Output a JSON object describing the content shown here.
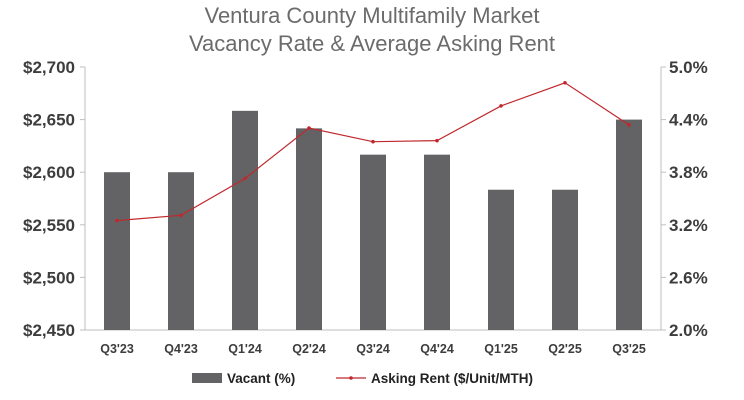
{
  "chart_data": {
    "type": "bar",
    "title": [
      "Ventura County Multifamily Market",
      "Vacancy Rate & Average Asking Rent"
    ],
    "categories": [
      "Q3'23",
      "Q4'23",
      "Q1'24",
      "Q2'24",
      "Q3'24",
      "Q4'24",
      "Q1'25",
      "Q2'25",
      "Q3'25"
    ],
    "series": [
      {
        "name": "Vacant (%)",
        "type": "bar",
        "axis": "right",
        "color": "#636366",
        "values": [
          3.8,
          3.8,
          4.5,
          4.3,
          4.0,
          4.0,
          3.6,
          3.6,
          4.4
        ]
      },
      {
        "name": "Asking Rent ($/Unit/MTH)",
        "type": "line",
        "axis": "left",
        "color": "#c0282d",
        "values": [
          2554,
          2559,
          2594,
          2642,
          2629,
          2630,
          2663,
          2685,
          2645
        ]
      }
    ],
    "y_left": {
      "min": 2450,
      "max": 2700,
      "step": 50,
      "ticks": [
        "$2,450",
        "$2,500",
        "$2,550",
        "$2,600",
        "$2,650",
        "$2,700"
      ]
    },
    "y_right": {
      "min": 2.0,
      "max": 5.0,
      "step": 0.6,
      "ticks": [
        "2.0%",
        "2.6%",
        "3.2%",
        "3.8%",
        "4.4%",
        "5.0%"
      ]
    },
    "grid": false,
    "legend": "bottom"
  }
}
